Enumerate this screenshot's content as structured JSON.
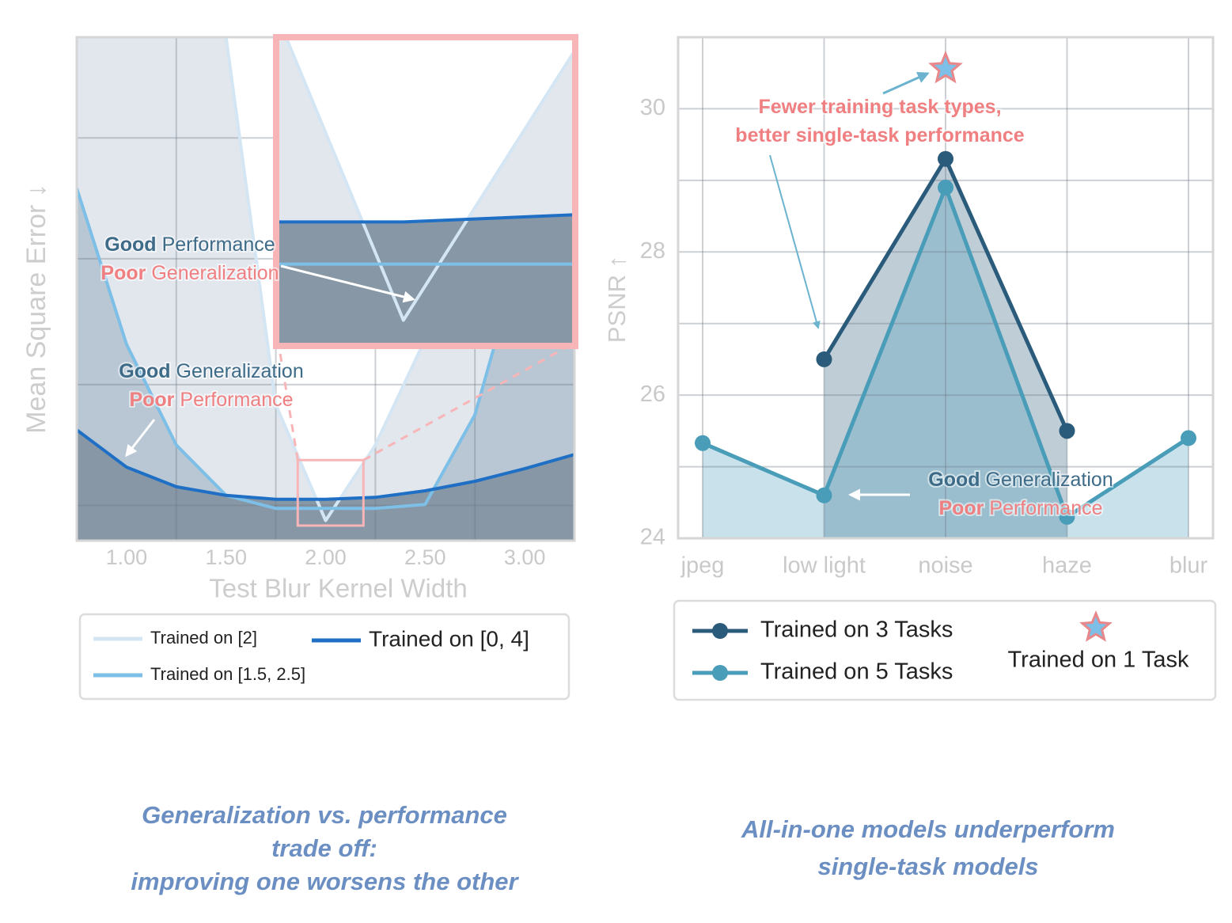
{
  "chart_data": [
    {
      "type": "area",
      "x_label": "Test Blur Kernel Width",
      "y_label": "Mean Square Error ↓",
      "xlim": [
        0.75,
        3.25
      ],
      "xticks": [
        {
          "value": 1,
          "label": "1.00"
        },
        {
          "value": 1.5,
          "label": "1.50"
        },
        {
          "value": 2,
          "label": "2.00"
        },
        {
          "value": 2.5,
          "label": "2.50"
        },
        {
          "value": 3,
          "label": "3.00"
        }
      ],
      "x_grid": [
        1.25,
        1.75,
        2.25,
        2.75
      ],
      "ylim": [
        0,
        1
      ],
      "yticks": [
        0.07,
        0.31,
        0.56,
        0.8
      ],
      "grid": true,
      "series": [
        {
          "name": "Trained on [2]",
          "color": "#d4e6f3",
          "fill": "#e2e7ed",
          "x": [
            1.5,
            1.75,
            2.0,
            2.25,
            2.5,
            2.75
          ],
          "values": [
            1.0,
            0.27,
            0.04,
            0.19,
            0.4,
            1.0
          ]
        },
        {
          "name": "Trained on [1.5, 2.5]",
          "color": "#7dbfe6",
          "fill": "#b8c7d3",
          "x": [
            0.75,
            1.0,
            1.25,
            1.5,
            1.75,
            2.0,
            2.25,
            2.5,
            2.75,
            3.0
          ],
          "values": [
            0.7,
            0.39,
            0.19,
            0.09,
            0.064,
            0.064,
            0.064,
            0.072,
            0.25,
            0.6
          ]
        },
        {
          "name": "Trained on [0, 4]",
          "color": "#1f6fc5",
          "fill": "#8797a6",
          "x": [
            0.75,
            1.0,
            1.25,
            1.5,
            1.75,
            2.0,
            2.25,
            2.5,
            2.75,
            3.0,
            3.25
          ],
          "values": [
            0.22,
            0.146,
            0.107,
            0.09,
            0.082,
            0.082,
            0.086,
            0.099,
            0.118,
            0.143,
            0.171
          ]
        }
      ],
      "zoom": {
        "xlim": [
          1.86,
          2.19
        ],
        "ylim": [
          0.03,
          0.16
        ],
        "color": "#f7b5b8"
      },
      "annotations": [
        {
          "lines": [
            [
              "Good",
              "Performance"
            ],
            [
              "Poor",
              "Generalization"
            ]
          ]
        },
        {
          "lines": [
            [
              "Good",
              "Generalization"
            ],
            [
              "Poor",
              "Performance"
            ]
          ]
        }
      ],
      "caption": [
        "Generalization vs. performance",
        "trade off:",
        "improving one worsens the other"
      ]
    },
    {
      "type": "area",
      "y_label": "PSNR ↑",
      "categories": [
        "jpeg",
        "low light",
        "noise",
        "haze",
        "blur"
      ],
      "ylim": [
        24,
        31
      ],
      "yticks": [
        24,
        26,
        28,
        30
      ],
      "y_grid": [
        25,
        27,
        29
      ],
      "grid": true,
      "series": [
        {
          "name": "Trained on 3 Tasks",
          "color": "#2b5b7b",
          "fill": "rgba(43,91,123,0.3)",
          "marker": "circle",
          "values": [
            null,
            26.5,
            29.3,
            25.5,
            null
          ]
        },
        {
          "name": "Trained on 5 Tasks",
          "color": "#4a9db8",
          "fill": "rgba(74,157,184,0.3)",
          "marker": "circle",
          "values": [
            25.33,
            24.6,
            28.9,
            24.3,
            25.4
          ]
        },
        {
          "name": "Trained on 1 Task",
          "color": "#7dbfe6",
          "edge": "#e8888a",
          "marker": "star",
          "values": [
            null,
            null,
            30.56,
            null,
            null
          ]
        }
      ],
      "annotations": [
        {
          "lines": [
            [
              "",
              "Fewer training task types,"
            ],
            [
              "",
              "better single-task performance"
            ]
          ]
        },
        {
          "lines": [
            [
              "Good",
              "Generalization"
            ],
            [
              "Poor",
              "Performance"
            ]
          ]
        }
      ],
      "caption": [
        "All-in-one models underperform",
        "single-task models"
      ]
    }
  ]
}
